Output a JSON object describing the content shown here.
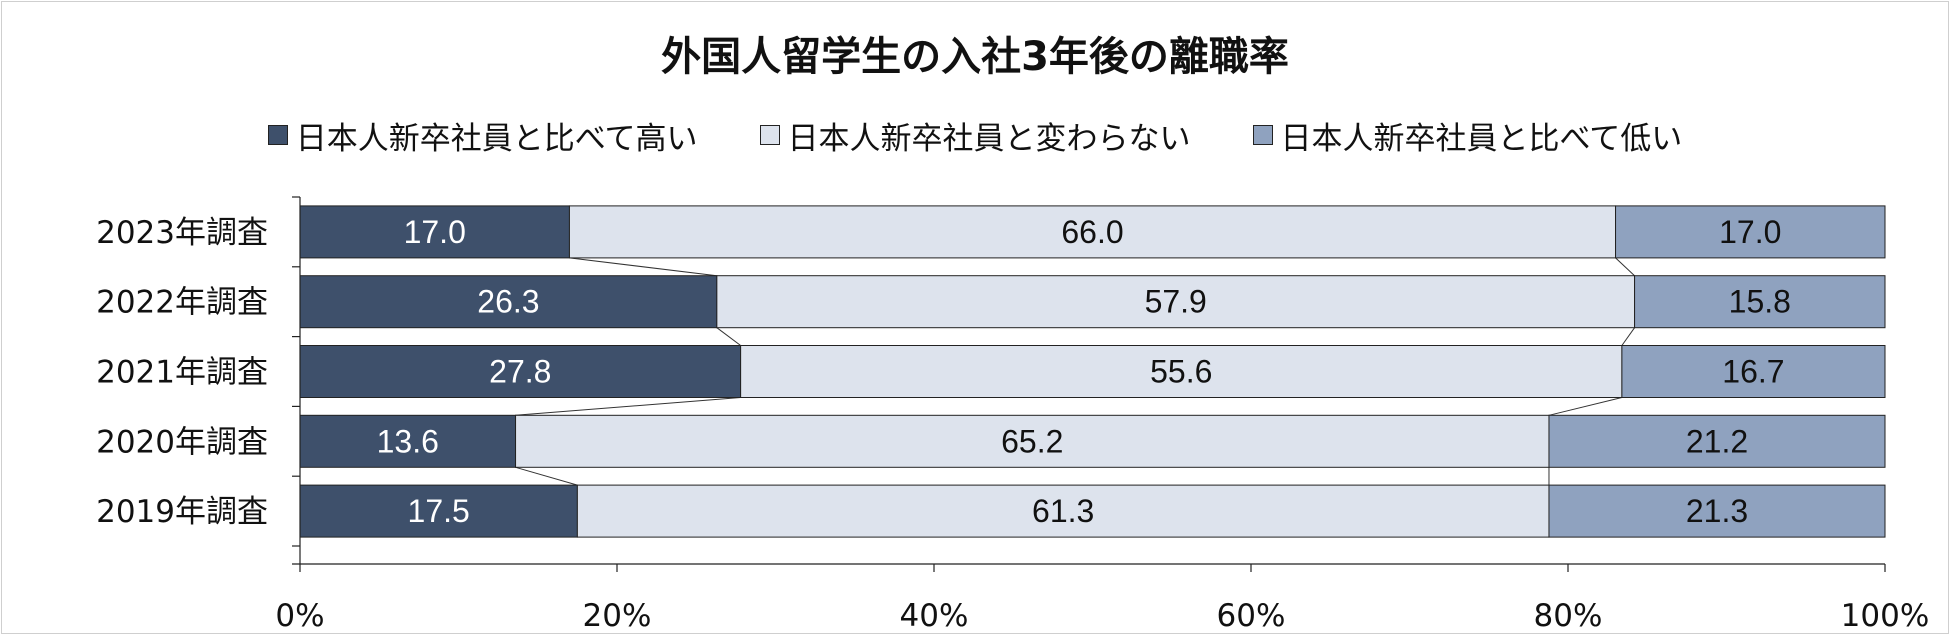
{
  "chart_data": {
    "type": "bar",
    "orientation": "horizontal",
    "stacked": true,
    "percent": true,
    "title": "外国人留学生の入社3年後の離職率",
    "categories": [
      "2023年調査",
      "2022年調査",
      "2021年調査",
      "2020年調査",
      "2019年調査"
    ],
    "series": [
      {
        "name": "日本人新卒社員と比べて高い",
        "color": "#3e506b",
        "label_color": "#ffffff",
        "values": [
          17.0,
          26.3,
          27.8,
          13.6,
          17.5
        ],
        "labels": [
          "17.0",
          "26.3",
          "27.8",
          "13.6",
          "17.5"
        ]
      },
      {
        "name": "日本人新卒社員と変わらない",
        "color": "#dde3ed",
        "label_color": "#111111",
        "values": [
          66.0,
          57.9,
          55.6,
          65.2,
          61.3
        ],
        "labels": [
          "66.0",
          "57.9",
          "55.6",
          "65.2",
          "61.3"
        ]
      },
      {
        "name": "日本人新卒社員と比べて低い",
        "color": "#8fa2bf",
        "label_color": "#111111",
        "values": [
          17.0,
          15.8,
          16.7,
          21.2,
          21.3
        ],
        "labels": [
          "17.0",
          "15.8",
          "16.7",
          "21.2",
          "21.3"
        ]
      }
    ],
    "xlim": [
      0,
      100
    ],
    "x_ticks": [
      "0%",
      "20%",
      "40%",
      "60%",
      "80%",
      "100%"
    ],
    "series_lines": true,
    "grid": false,
    "legend_position": "top"
  }
}
